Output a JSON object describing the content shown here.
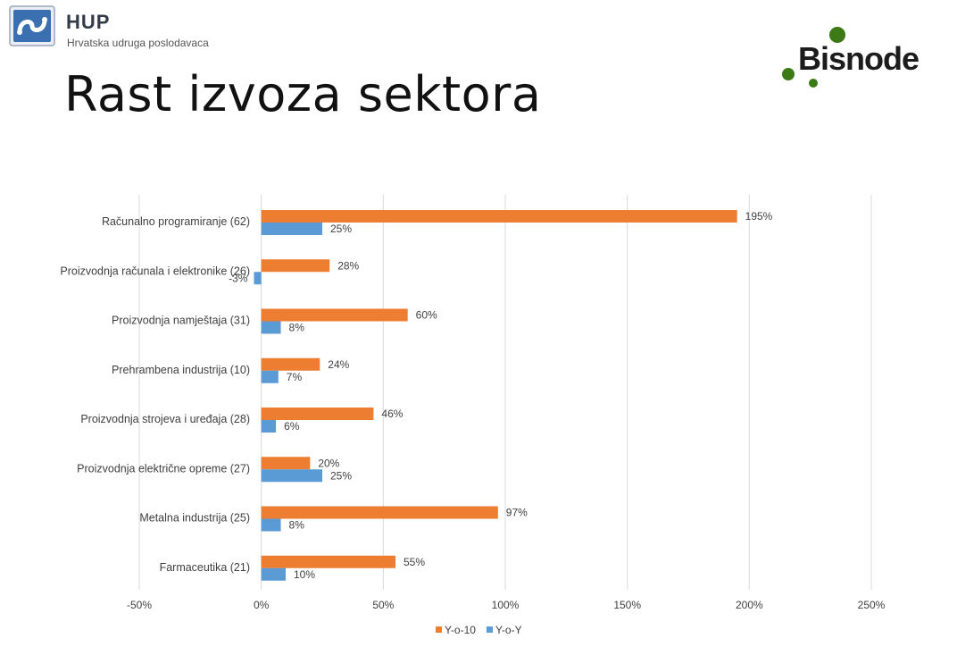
{
  "header": {
    "org_name": "HUP",
    "org_subtitle": "Hrvatska udruga poslodavaca",
    "brand_logo_text": "Bisnode",
    "title": "Rast izvoza sektora"
  },
  "colors": {
    "y_o_10": "#ED7D31",
    "y_o_y": "#5B9BD5",
    "grid": "#d9d9d9",
    "brand_green": "#3c7a16"
  },
  "chart_data": {
    "type": "bar",
    "orientation": "horizontal",
    "categories": [
      "Računalno programiranje (62)",
      "Proizvodnja računala i elektronike (26)",
      "Proizvodnja namještaja (31)",
      "Prehrambena industrija (10)",
      "Proizvodnja strojeva i uređaja (28)",
      "Proizvodnja električne opreme (27)",
      "Metalna industrija (25)",
      "Farmaceutika (21)"
    ],
    "series": [
      {
        "name": "Y-o-10",
        "values": [
          195,
          28,
          60,
          24,
          46,
          20,
          97,
          55
        ]
      },
      {
        "name": "Y-o-Y",
        "values": [
          25,
          -3,
          8,
          7,
          6,
          25,
          8,
          10
        ]
      }
    ],
    "xlim": [
      -50,
      250
    ],
    "xticks": [
      -50,
      0,
      50,
      100,
      150,
      200,
      250
    ],
    "unit": "%",
    "grid": true,
    "legend_position": "bottom"
  }
}
